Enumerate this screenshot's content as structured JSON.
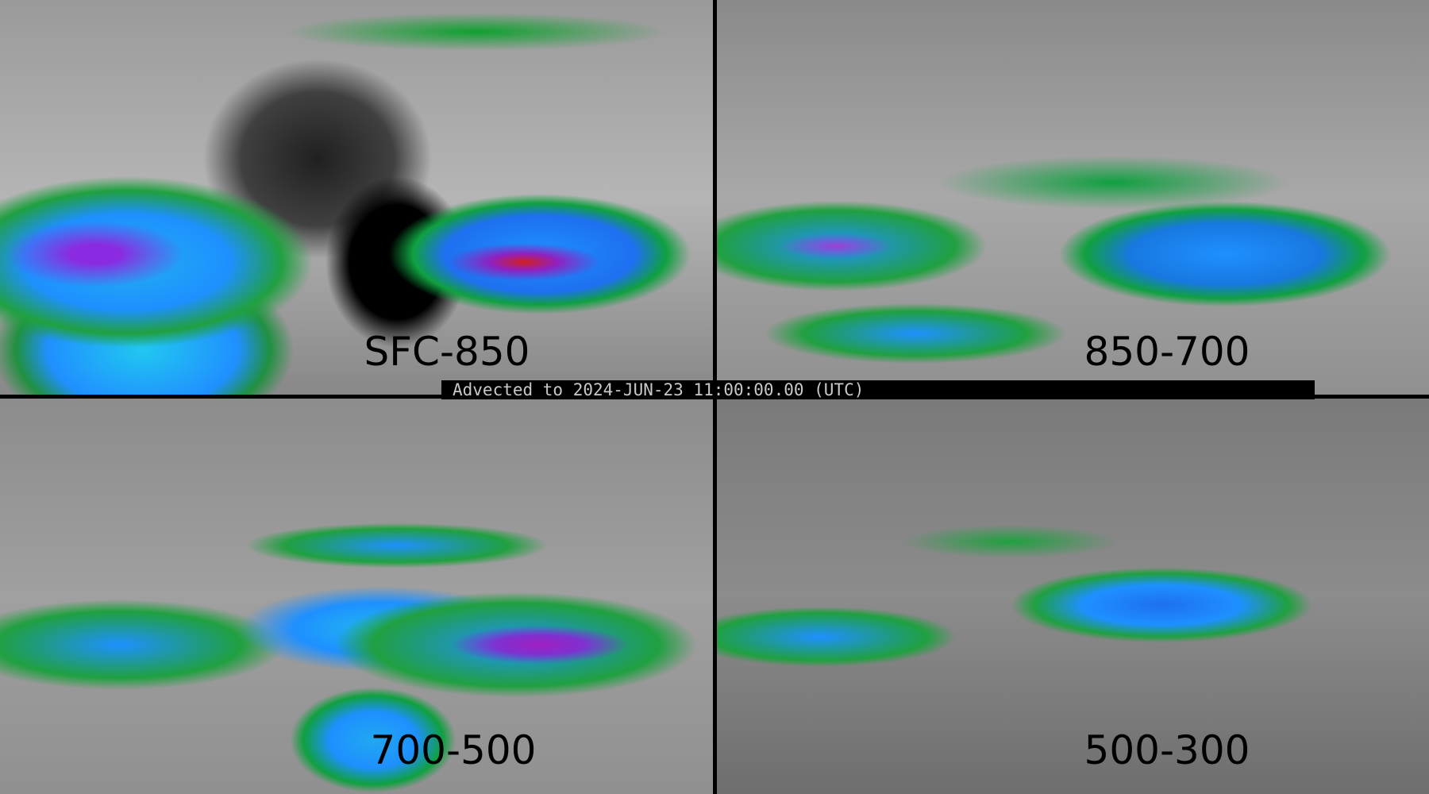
{
  "banner": {
    "text": "Advected to 2024-JUN-23 11:00:00.00 (UTC)"
  },
  "panels": [
    {
      "label": "SFC-850"
    },
    {
      "label": "850-700"
    },
    {
      "label": "700-500"
    },
    {
      "label": "500-300"
    }
  ],
  "colors": {
    "low": "#10a040",
    "mid": "#1e90ff",
    "high": "#8a2be2",
    "peak": "#d02020",
    "background": "#a0a0a0"
  }
}
